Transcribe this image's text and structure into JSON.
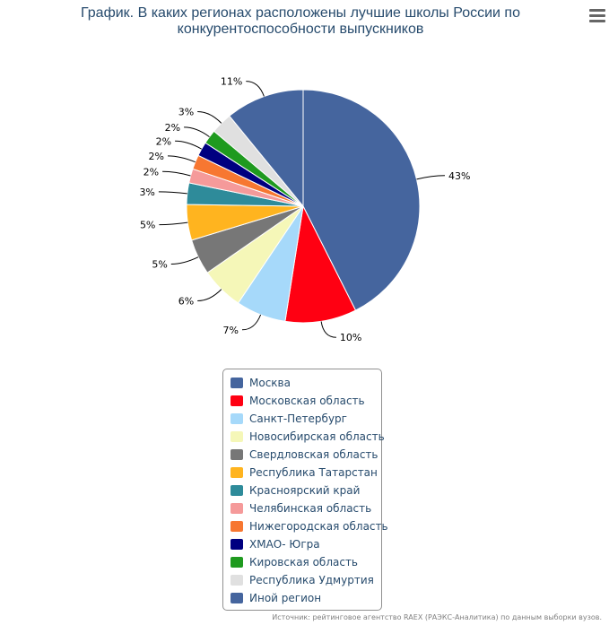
{
  "title": "График. В каких регионах расположены лучшие школы России по конкурентоспособности выпускников",
  "source": "Источник: рейтинговое агентство RAEX (РАЭКС-Аналитика) по данным выборки вузов.",
  "menu_icon": "hamburger-menu-icon",
  "chart_data": {
    "type": "pie",
    "title": "График. В каких регионах расположены лучшие школы России по конкурентоспособности выпускников",
    "unit": "%",
    "legend_position": "bottom",
    "slices": [
      {
        "name": "Москва",
        "value": 43,
        "label": "43%",
        "color": "#45659e"
      },
      {
        "name": "Московская область",
        "value": 10,
        "label": "10%",
        "color": "#ff0012"
      },
      {
        "name": "Санкт-Петербург",
        "value": 7,
        "label": "7%",
        "color": "#a6d9fa"
      },
      {
        "name": "Новосибирская область",
        "value": 6,
        "label": "6%",
        "color": "#f5f7b8"
      },
      {
        "name": "Свердловская область",
        "value": 5,
        "label": "5%",
        "color": "#777777"
      },
      {
        "name": "Республика Татарстан",
        "value": 5,
        "label": "5%",
        "color": "#ffb41f"
      },
      {
        "name": "Красноярский край",
        "value": 3,
        "label": "3%",
        "color": "#2e8b9a"
      },
      {
        "name": "Челябинская область",
        "value": 2,
        "label": "2%",
        "color": "#f59a9a"
      },
      {
        "name": "Нижегородская область",
        "value": 2,
        "label": "2%",
        "color": "#f77731"
      },
      {
        "name": "ХМАО- Югра",
        "value": 2,
        "label": "2%",
        "color": "#000080"
      },
      {
        "name": "Кировская область",
        "value": 2,
        "label": "2%",
        "color": "#1f9a1f"
      },
      {
        "name": "Республика Удмуртия",
        "value": 3,
        "label": "3%",
        "color": "#e0e0e0"
      },
      {
        "name": "Иной регион",
        "value": 11,
        "label": "11%",
        "color": "#45659e"
      }
    ]
  }
}
